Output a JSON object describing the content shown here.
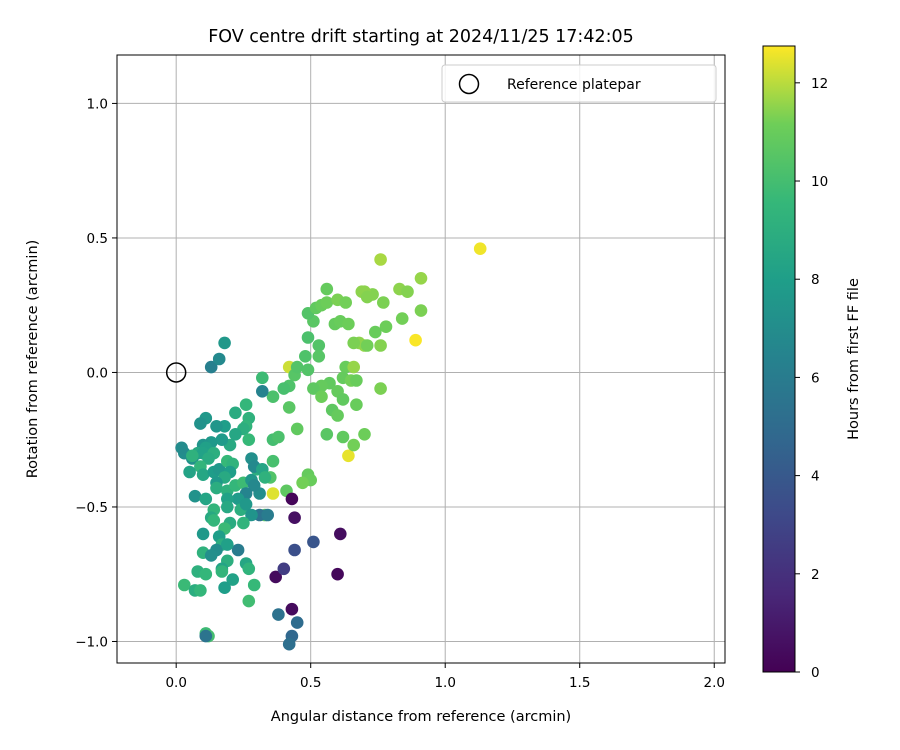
{
  "chart_data": {
    "type": "scatter",
    "title": "FOV centre drift starting at 2024/11/25 17:42:05",
    "xlabel": "Angular distance from reference (arcmin)",
    "ylabel": "Rotation from reference (arcmin)",
    "xlim": [
      -0.22,
      2.04
    ],
    "ylim": [
      -1.08,
      1.18
    ],
    "xticks": [
      0.0,
      0.5,
      1.0,
      1.5,
      2.0
    ],
    "xtick_labels": [
      "0.0",
      "0.5",
      "1.0",
      "1.5",
      "2.0"
    ],
    "yticks": [
      1.0,
      0.5,
      0.0,
      -0.5,
      -1.0
    ],
    "ytick_labels": [
      "1.0",
      "0.5",
      "0.0",
      "−0.5",
      "−1.0"
    ],
    "grid": true,
    "legend": {
      "placement": "top-right",
      "label": "Reference platepar",
      "marker": "hollow-circle"
    },
    "reference_point": {
      "x": 0.0,
      "y": 0.0
    },
    "colorbar": {
      "label": "Hours from first FF file",
      "colormap": "viridis",
      "range": [
        0,
        12.75
      ],
      "ticks": [
        0,
        2,
        4,
        6,
        8,
        10,
        12
      ],
      "tick_labels": [
        "0",
        "2",
        "4",
        "6",
        "8",
        "10",
        "12"
      ]
    },
    "points": [
      [
        1.13,
        0.46,
        12.6
      ],
      [
        0.89,
        0.12,
        12.7
      ],
      [
        0.64,
        -0.31,
        12.5
      ],
      [
        0.36,
        -0.45,
        12.4
      ],
      [
        0.42,
        0.02,
        12.2
      ],
      [
        0.76,
        0.42,
        11.8
      ],
      [
        0.91,
        0.35,
        11.6
      ],
      [
        0.83,
        0.31,
        11.5
      ],
      [
        0.86,
        0.3,
        11.4
      ],
      [
        0.91,
        0.23,
        11.3
      ],
      [
        0.77,
        0.26,
        11.3
      ],
      [
        0.84,
        0.2,
        11.2
      ],
      [
        0.73,
        0.29,
        11.4
      ],
      [
        0.7,
        0.3,
        11.5
      ],
      [
        0.78,
        0.17,
        11.1
      ],
      [
        0.74,
        0.15,
        11.0
      ],
      [
        0.7,
        0.1,
        11.6
      ],
      [
        0.68,
        0.11,
        11.5
      ],
      [
        0.66,
        0.11,
        11.3
      ],
      [
        0.71,
        0.1,
        11.2
      ],
      [
        0.76,
        0.1,
        11.4
      ],
      [
        0.63,
        0.02,
        11.0
      ],
      [
        0.66,
        0.02,
        11.6
      ],
      [
        0.62,
        -0.02,
        10.9
      ],
      [
        0.65,
        -0.03,
        11.2
      ],
      [
        0.67,
        -0.03,
        11.0
      ],
      [
        0.76,
        -0.06,
        11.3
      ],
      [
        0.57,
        -0.04,
        10.8
      ],
      [
        0.54,
        -0.05,
        10.9
      ],
      [
        0.51,
        -0.06,
        10.7
      ],
      [
        0.54,
        -0.09,
        11.1
      ],
      [
        0.6,
        -0.07,
        10.9
      ],
      [
        0.62,
        -0.1,
        10.8
      ],
      [
        0.67,
        -0.12,
        11.0
      ],
      [
        0.58,
        -0.14,
        10.7
      ],
      [
        0.6,
        -0.16,
        10.9
      ],
      [
        0.7,
        -0.23,
        11.1
      ],
      [
        0.62,
        -0.24,
        10.8
      ],
      [
        0.66,
        -0.27,
        11.2
      ],
      [
        0.56,
        -0.23,
        10.6
      ],
      [
        0.49,
        -0.38,
        10.9
      ],
      [
        0.5,
        -0.4,
        11.0
      ],
      [
        0.47,
        -0.41,
        11.2
      ],
      [
        0.41,
        -0.44,
        10.7
      ],
      [
        0.44,
        -0.01,
        10.5
      ],
      [
        0.42,
        -0.05,
        10.3
      ],
      [
        0.45,
        0.02,
        10.4
      ],
      [
        0.4,
        -0.06,
        10.1
      ],
      [
        0.36,
        -0.09,
        10.2
      ],
      [
        0.42,
        -0.13,
        10.6
      ],
      [
        0.45,
        -0.21,
        10.8
      ],
      [
        0.36,
        -0.25,
        10.0
      ],
      [
        0.38,
        -0.24,
        10.2
      ],
      [
        0.36,
        -0.33,
        10.1
      ],
      [
        0.35,
        -0.39,
        10.4
      ],
      [
        0.33,
        -0.53,
        10.6
      ],
      [
        0.48,
        0.06,
        10.3
      ],
      [
        0.53,
        0.1,
        10.4
      ],
      [
        0.53,
        0.06,
        10.5
      ],
      [
        0.49,
        0.13,
        10.2
      ],
      [
        0.51,
        0.19,
        10.6
      ],
      [
        0.49,
        0.22,
        10.4
      ],
      [
        0.52,
        0.24,
        10.8
      ],
      [
        0.54,
        0.25,
        11.0
      ],
      [
        0.56,
        0.26,
        11.1
      ],
      [
        0.56,
        0.31,
        10.9
      ],
      [
        0.6,
        0.27,
        11.3
      ],
      [
        0.63,
        0.26,
        11.2
      ],
      [
        0.59,
        0.18,
        10.9
      ],
      [
        0.61,
        0.19,
        11.0
      ],
      [
        0.64,
        0.18,
        11.1
      ],
      [
        0.69,
        0.3,
        11.5
      ],
      [
        0.71,
        0.28,
        11.4
      ],
      [
        0.49,
        0.01,
        10.4
      ],
      [
        0.32,
        -0.02,
        9.8
      ],
      [
        0.26,
        -0.12,
        9.5
      ],
      [
        0.22,
        -0.15,
        8.8
      ],
      [
        0.27,
        -0.17,
        9.2
      ],
      [
        0.26,
        -0.2,
        9.4
      ],
      [
        0.25,
        -0.21,
        9.0
      ],
      [
        0.2,
        -0.27,
        8.7
      ],
      [
        0.27,
        -0.25,
        9.6
      ],
      [
        0.22,
        -0.23,
        8.5
      ],
      [
        0.18,
        -0.2,
        8.0
      ],
      [
        0.17,
        -0.25,
        7.8
      ],
      [
        0.15,
        -0.2,
        7.5
      ],
      [
        0.11,
        -0.17,
        7.6
      ],
      [
        0.09,
        -0.19,
        7.3
      ],
      [
        0.13,
        -0.26,
        7.7
      ],
      [
        0.1,
        -0.27,
        7.4
      ],
      [
        0.11,
        -0.28,
        8.1
      ],
      [
        0.08,
        -0.3,
        8.6
      ],
      [
        0.1,
        -0.3,
        8.2
      ],
      [
        0.14,
        -0.3,
        9.0
      ],
      [
        0.12,
        -0.32,
        8.8
      ],
      [
        0.06,
        -0.32,
        7.2
      ],
      [
        0.03,
        -0.3,
        7.0
      ],
      [
        0.02,
        -0.28,
        6.9
      ],
      [
        0.06,
        -0.31,
        9.2
      ],
      [
        0.09,
        -0.35,
        9.4
      ],
      [
        0.05,
        -0.37,
        8.3
      ],
      [
        0.1,
        -0.38,
        8.5
      ],
      [
        0.14,
        -0.37,
        7.9
      ],
      [
        0.16,
        -0.36,
        7.6
      ],
      [
        0.19,
        -0.33,
        9.6
      ],
      [
        0.21,
        -0.34,
        9.3
      ],
      [
        0.2,
        -0.37,
        8.0
      ],
      [
        0.18,
        -0.39,
        8.7
      ],
      [
        0.15,
        -0.41,
        7.7
      ],
      [
        0.15,
        -0.43,
        8.9
      ],
      [
        0.19,
        -0.44,
        9.1
      ],
      [
        0.22,
        -0.42,
        9.5
      ],
      [
        0.25,
        -0.41,
        9.8
      ],
      [
        0.28,
        -0.4,
        7.5
      ],
      [
        0.3,
        -0.36,
        9.0
      ],
      [
        0.28,
        -0.32,
        7.1
      ],
      [
        0.29,
        -0.35,
        6.8
      ],
      [
        0.32,
        -0.36,
        8.4
      ],
      [
        0.33,
        -0.39,
        9.2
      ],
      [
        0.31,
        -0.45,
        7.0
      ],
      [
        0.29,
        -0.42,
        6.7
      ],
      [
        0.26,
        -0.45,
        6.5
      ],
      [
        0.23,
        -0.47,
        7.8
      ],
      [
        0.19,
        -0.47,
        8.2
      ],
      [
        0.19,
        -0.5,
        8.6
      ],
      [
        0.24,
        -0.51,
        9.0
      ],
      [
        0.26,
        -0.49,
        7.6
      ],
      [
        0.31,
        -0.53,
        5.4
      ],
      [
        0.28,
        -0.53,
        7.4
      ],
      [
        0.25,
        -0.56,
        9.3
      ],
      [
        0.2,
        -0.56,
        8.8
      ],
      [
        0.18,
        -0.58,
        9.7
      ],
      [
        0.14,
        -0.51,
        9.4
      ],
      [
        0.13,
        -0.54,
        8.7
      ],
      [
        0.14,
        -0.55,
        9.5
      ],
      [
        0.07,
        -0.46,
        7.3
      ],
      [
        0.11,
        -0.47,
        8.4
      ],
      [
        0.1,
        -0.6,
        7.7
      ],
      [
        0.16,
        -0.61,
        8.0
      ],
      [
        0.17,
        -0.64,
        8.9
      ],
      [
        0.15,
        -0.66,
        7.0
      ],
      [
        0.23,
        -0.66,
        6.0
      ],
      [
        0.19,
        -0.64,
        8.1
      ],
      [
        0.1,
        -0.67,
        9.2
      ],
      [
        0.13,
        -0.68,
        7.1
      ],
      [
        0.19,
        -0.7,
        9.0
      ],
      [
        0.17,
        -0.73,
        8.3
      ],
      [
        0.17,
        -0.74,
        9.4
      ],
      [
        0.26,
        -0.71,
        8.5
      ],
      [
        0.27,
        -0.73,
        9.3
      ],
      [
        0.08,
        -0.74,
        9.1
      ],
      [
        0.11,
        -0.75,
        9.5
      ],
      [
        0.21,
        -0.77,
        8.2
      ],
      [
        0.18,
        -0.8,
        8.0
      ],
      [
        0.29,
        -0.79,
        9.6
      ],
      [
        0.03,
        -0.79,
        9.7
      ],
      [
        0.07,
        -0.81,
        8.9
      ],
      [
        0.09,
        -0.81,
        9.5
      ],
      [
        0.27,
        -0.85,
        9.9
      ],
      [
        0.11,
        -0.97,
        9.8
      ],
      [
        0.12,
        -0.98,
        10.0
      ],
      [
        0.11,
        -0.98,
        5.5
      ],
      [
        0.37,
        -0.76,
        0.4
      ],
      [
        0.4,
        -0.73,
        2.6
      ],
      [
        0.44,
        -0.66,
        3.5
      ],
      [
        0.51,
        -0.63,
        3.8
      ],
      [
        0.6,
        -0.75,
        0.3
      ],
      [
        0.61,
        -0.6,
        0.5
      ],
      [
        0.43,
        -0.47,
        0.2
      ],
      [
        0.44,
        -0.54,
        0.6
      ],
      [
        0.43,
        -0.88,
        0.4
      ],
      [
        0.38,
        -0.9,
        5.4
      ],
      [
        0.45,
        -0.93,
        5.0
      ],
      [
        0.43,
        -0.98,
        4.8
      ],
      [
        0.42,
        -1.01,
        5.2
      ],
      [
        0.13,
        0.02,
        6.2
      ],
      [
        0.16,
        0.05,
        6.8
      ],
      [
        0.18,
        0.11,
        7.6
      ],
      [
        0.32,
        -0.07,
        6.4
      ],
      [
        0.34,
        -0.53,
        6.0
      ]
    ]
  }
}
